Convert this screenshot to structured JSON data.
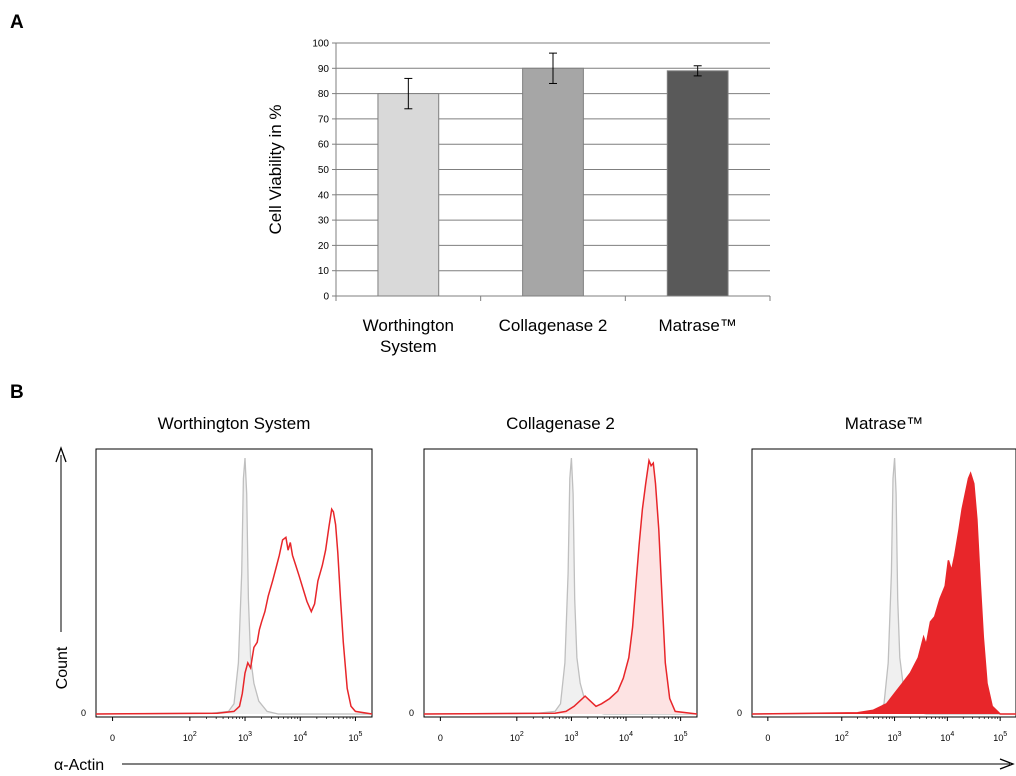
{
  "panels": {
    "a_label": "A",
    "b_label": "B"
  },
  "chart_data": [
    {
      "type": "bar",
      "categories": [
        "Worthington System",
        "Collagenase 2",
        "Matrase™"
      ],
      "category_lines": [
        [
          "Worthington",
          "System"
        ],
        [
          "Collagenase 2"
        ],
        [
          "Matrase™"
        ]
      ],
      "values": [
        80,
        90,
        89
      ],
      "error": [
        6,
        6,
        2
      ],
      "bar_colors": [
        "#d9d9d9",
        "#a6a6a6",
        "#595959"
      ],
      "ylabel": "Cell Viability in %",
      "ylim": [
        0,
        100
      ],
      "ytick_step": 10,
      "grid": true
    },
    {
      "type": "area",
      "xlabel": "α-Actin",
      "ylabel": "Count",
      "x_scale": "log",
      "xlim": [
        0.3,
        5.3
      ],
      "ytick_label": "0",
      "xtick_labels": [
        {
          "v": 0.6,
          "base": "0",
          "exp": ""
        },
        {
          "v": 2,
          "base": "10",
          "exp": "2"
        },
        {
          "v": 3,
          "base": "10",
          "exp": "3"
        },
        {
          "v": 4,
          "base": "10",
          "exp": "4"
        },
        {
          "v": 5,
          "base": "10",
          "exp": "5"
        }
      ],
      "control_color": "#bfbfbf",
      "sample_color": "#e8262a",
      "histograms": [
        {
          "title": "Worthington System",
          "fill": "none",
          "control": [
            [
              0.3,
              0
            ],
            [
              2.4,
              0.003
            ],
            [
              2.7,
              0.01
            ],
            [
              2.8,
              0.04
            ],
            [
              2.88,
              0.2
            ],
            [
              2.94,
              0.55
            ],
            [
              2.97,
              0.92
            ],
            [
              3.0,
              1.0
            ],
            [
              3.03,
              0.86
            ],
            [
              3.06,
              0.45
            ],
            [
              3.1,
              0.22
            ],
            [
              3.16,
              0.12
            ],
            [
              3.25,
              0.05
            ],
            [
              3.4,
              0.01
            ],
            [
              3.6,
              0
            ],
            [
              5.3,
              0
            ]
          ],
          "sample": [
            [
              0.3,
              0
            ],
            [
              2.5,
              0.003
            ],
            [
              2.8,
              0.01
            ],
            [
              2.9,
              0.03
            ],
            [
              2.95,
              0.08
            ],
            [
              3.0,
              0.16
            ],
            [
              3.05,
              0.2
            ],
            [
              3.1,
              0.18
            ],
            [
              3.16,
              0.26
            ],
            [
              3.22,
              0.28
            ],
            [
              3.26,
              0.33
            ],
            [
              3.3,
              0.36
            ],
            [
              3.36,
              0.4
            ],
            [
              3.42,
              0.46
            ],
            [
              3.5,
              0.52
            ],
            [
              3.56,
              0.57
            ],
            [
              3.62,
              0.62
            ],
            [
              3.68,
              0.68
            ],
            [
              3.74,
              0.69
            ],
            [
              3.78,
              0.64
            ],
            [
              3.82,
              0.67
            ],
            [
              3.86,
              0.62
            ],
            [
              3.92,
              0.58
            ],
            [
              3.98,
              0.54
            ],
            [
              4.05,
              0.49
            ],
            [
              4.12,
              0.44
            ],
            [
              4.2,
              0.4
            ],
            [
              4.26,
              0.43
            ],
            [
              4.32,
              0.52
            ],
            [
              4.4,
              0.58
            ],
            [
              4.46,
              0.64
            ],
            [
              4.52,
              0.73
            ],
            [
              4.57,
              0.8
            ],
            [
              4.6,
              0.79
            ],
            [
              4.64,
              0.74
            ],
            [
              4.68,
              0.63
            ],
            [
              4.73,
              0.45
            ],
            [
              4.78,
              0.28
            ],
            [
              4.85,
              0.1
            ],
            [
              4.92,
              0.03
            ],
            [
              5.0,
              0.01
            ],
            [
              5.3,
              0
            ]
          ]
        },
        {
          "title": "Collagenase 2",
          "fill": "light",
          "control": [
            [
              0.3,
              0
            ],
            [
              2.4,
              0.003
            ],
            [
              2.7,
              0.01
            ],
            [
              2.8,
              0.04
            ],
            [
              2.88,
              0.2
            ],
            [
              2.94,
              0.55
            ],
            [
              2.97,
              0.92
            ],
            [
              3.0,
              1.0
            ],
            [
              3.03,
              0.86
            ],
            [
              3.06,
              0.45
            ],
            [
              3.1,
              0.22
            ],
            [
              3.16,
              0.12
            ],
            [
              3.25,
              0.05
            ],
            [
              3.4,
              0.01
            ],
            [
              3.6,
              0
            ],
            [
              5.3,
              0
            ]
          ],
          "sample": [
            [
              0.3,
              0
            ],
            [
              2.7,
              0.003
            ],
            [
              2.9,
              0.01
            ],
            [
              3.05,
              0.03
            ],
            [
              3.15,
              0.05
            ],
            [
              3.25,
              0.07
            ],
            [
              3.35,
              0.05
            ],
            [
              3.45,
              0.03
            ],
            [
              3.55,
              0.04
            ],
            [
              3.7,
              0.06
            ],
            [
              3.85,
              0.09
            ],
            [
              3.95,
              0.14
            ],
            [
              4.05,
              0.22
            ],
            [
              4.12,
              0.34
            ],
            [
              4.18,
              0.5
            ],
            [
              4.24,
              0.66
            ],
            [
              4.3,
              0.8
            ],
            [
              4.36,
              0.9
            ],
            [
              4.42,
              0.99
            ],
            [
              4.46,
              0.97
            ],
            [
              4.5,
              0.98
            ],
            [
              4.54,
              0.9
            ],
            [
              4.6,
              0.72
            ],
            [
              4.66,
              0.45
            ],
            [
              4.72,
              0.2
            ],
            [
              4.8,
              0.06
            ],
            [
              4.9,
              0.01
            ],
            [
              5.3,
              0
            ]
          ]
        },
        {
          "title": "Matrase™",
          "fill": "solid",
          "control": [
            [
              0.3,
              0
            ],
            [
              2.4,
              0.003
            ],
            [
              2.7,
              0.01
            ],
            [
              2.8,
              0.04
            ],
            [
              2.88,
              0.2
            ],
            [
              2.94,
              0.55
            ],
            [
              2.97,
              0.92
            ],
            [
              3.0,
              1.0
            ],
            [
              3.03,
              0.86
            ],
            [
              3.06,
              0.45
            ],
            [
              3.1,
              0.22
            ],
            [
              3.16,
              0.12
            ],
            [
              3.25,
              0.05
            ],
            [
              3.4,
              0.01
            ],
            [
              3.6,
              0
            ],
            [
              5.3,
              0
            ]
          ],
          "sample": [
            [
              0.3,
              0
            ],
            [
              2.3,
              0.005
            ],
            [
              2.6,
              0.015
            ],
            [
              2.85,
              0.04
            ],
            [
              3.0,
              0.08
            ],
            [
              3.15,
              0.12
            ],
            [
              3.3,
              0.16
            ],
            [
              3.45,
              0.22
            ],
            [
              3.55,
              0.3
            ],
            [
              3.6,
              0.27
            ],
            [
              3.68,
              0.36
            ],
            [
              3.76,
              0.38
            ],
            [
              3.86,
              0.45
            ],
            [
              3.96,
              0.5
            ],
            [
              4.02,
              0.6
            ],
            [
              4.08,
              0.56
            ],
            [
              4.14,
              0.62
            ],
            [
              4.22,
              0.72
            ],
            [
              4.28,
              0.8
            ],
            [
              4.34,
              0.86
            ],
            [
              4.4,
              0.92
            ],
            [
              4.44,
              0.94
            ],
            [
              4.5,
              0.9
            ],
            [
              4.56,
              0.76
            ],
            [
              4.62,
              0.52
            ],
            [
              4.68,
              0.3
            ],
            [
              4.75,
              0.12
            ],
            [
              4.85,
              0.03
            ],
            [
              5.0,
              0
            ],
            [
              5.3,
              0
            ]
          ]
        }
      ]
    }
  ]
}
